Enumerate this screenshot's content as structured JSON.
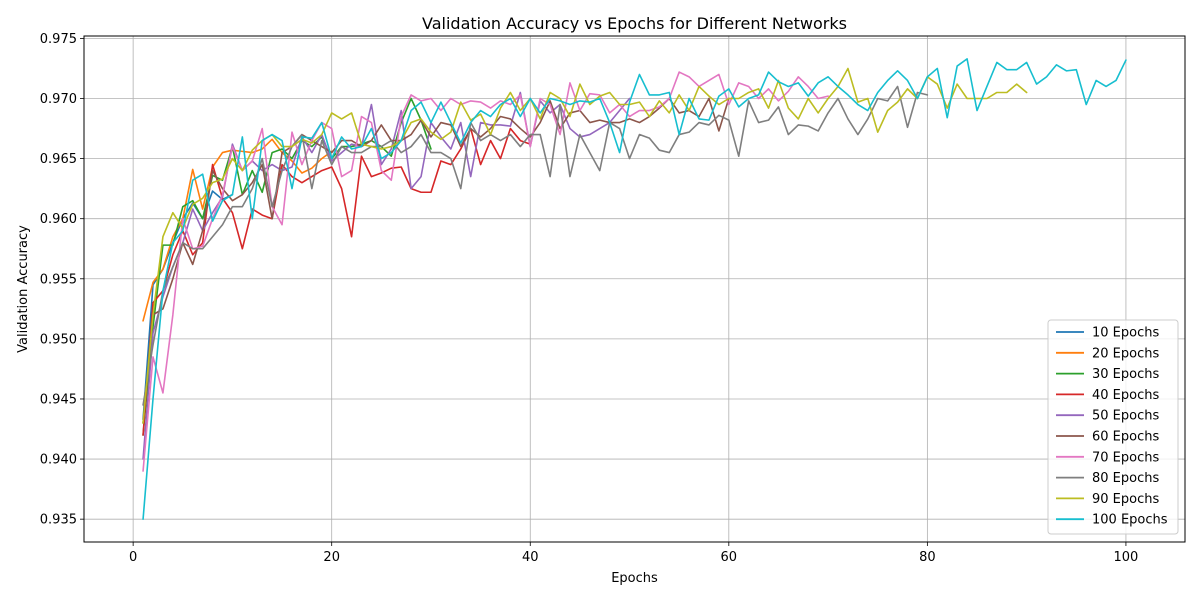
{
  "chart_data": {
    "type": "line",
    "title": "Validation Accuracy vs Epochs for Different Networks",
    "xlabel": "Epochs",
    "ylabel": "Validation Accuracy",
    "xlim": [
      -4.95,
      105.95
    ],
    "ylim": [
      0.9331,
      0.9752
    ],
    "xticks": [
      0,
      20,
      40,
      60,
      80,
      100
    ],
    "yticks": [
      0.935,
      0.94,
      0.945,
      0.95,
      0.955,
      0.96,
      0.965,
      0.97,
      0.975
    ],
    "ytick_labels": [
      "0.935",
      "0.940",
      "0.945",
      "0.950",
      "0.955",
      "0.960",
      "0.965",
      "0.970",
      "0.975"
    ],
    "grid": true,
    "legend_position": "lower-right",
    "series": [
      {
        "name": "10 Epochs",
        "color": "#1f77b4",
        "values": [
          0.9433,
          0.9545,
          0.9558,
          0.958,
          0.96,
          0.9613,
          0.96,
          0.9623,
          0.9616,
          0.962
        ]
      },
      {
        "name": "20 Epochs",
        "color": "#ff7f0e",
        "values": [
          0.9515,
          0.9547,
          0.9558,
          0.9585,
          0.96,
          0.9641,
          0.9608,
          0.9643,
          0.9655,
          0.9657,
          0.9656,
          0.9655,
          0.9658,
          0.9666,
          0.9655,
          0.9648,
          0.9638,
          0.9642,
          0.965,
          0.9656
        ]
      },
      {
        "name": "30 Epochs",
        "color": "#2ca02c",
        "values": [
          0.942,
          0.951,
          0.9578,
          0.9578,
          0.961,
          0.9615,
          0.96,
          0.9636,
          0.9632,
          0.966,
          0.962,
          0.964,
          0.9622,
          0.9655,
          0.9658,
          0.965,
          0.9665,
          0.966,
          0.9668,
          0.965,
          0.966,
          0.966,
          0.9662,
          0.9665,
          0.966,
          0.9652,
          0.968,
          0.97,
          0.9682,
          0.9658
        ]
      },
      {
        "name": "40 Epochs",
        "color": "#d62728",
        "values": [
          0.942,
          0.953,
          0.954,
          0.957,
          0.959,
          0.957,
          0.958,
          0.9645,
          0.9617,
          0.9605,
          0.9575,
          0.9608,
          0.9603,
          0.96,
          0.9645,
          0.9635,
          0.963,
          0.9635,
          0.964,
          0.9643,
          0.9625,
          0.9585,
          0.9652,
          0.9635,
          0.9638,
          0.9642,
          0.9643,
          0.9625,
          0.9622,
          0.9622,
          0.9648,
          0.9645,
          0.9658,
          0.9675,
          0.9645,
          0.9665,
          0.965,
          0.9675,
          0.9665,
          0.9662
        ]
      },
      {
        "name": "50 Epochs",
        "color": "#9467bd",
        "values": [
          0.94,
          0.9505,
          0.9535,
          0.956,
          0.958,
          0.9608,
          0.959,
          0.9605,
          0.9618,
          0.9662,
          0.964,
          0.9648,
          0.964,
          0.9645,
          0.964,
          0.9643,
          0.9668,
          0.9655,
          0.967,
          0.9648,
          0.9655,
          0.9662,
          0.966,
          0.9695,
          0.9645,
          0.9658,
          0.969,
          0.9625,
          0.9635,
          0.968,
          0.9668,
          0.9658,
          0.968,
          0.9635,
          0.968,
          0.9678,
          0.9678,
          0.9677,
          0.9705,
          0.966,
          0.9698,
          0.9688,
          0.9695,
          0.9675,
          0.9668,
          0.967,
          0.9675,
          0.968,
          0.969,
          0.97
        ]
      },
      {
        "name": "60 Epochs",
        "color": "#8c564b",
        "values": [
          0.943,
          0.952,
          0.9525,
          0.955,
          0.958,
          0.9562,
          0.959,
          0.964,
          0.9625,
          0.9615,
          0.962,
          0.963,
          0.9645,
          0.96,
          0.9655,
          0.966,
          0.967,
          0.9665,
          0.966,
          0.9655,
          0.9665,
          0.9665,
          0.966,
          0.9665,
          0.9678,
          0.9665,
          0.9665,
          0.967,
          0.9682,
          0.9668,
          0.968,
          0.9678,
          0.966,
          0.9675,
          0.9668,
          0.9675,
          0.9685,
          0.9683,
          0.9675,
          0.9668,
          0.968,
          0.9698,
          0.9675,
          0.9688,
          0.969,
          0.968,
          0.9682,
          0.968,
          0.968,
          0.9683,
          0.968,
          0.9685,
          0.9692,
          0.97,
          0.9688,
          0.969,
          0.9685,
          0.97,
          0.9673,
          0.97
        ]
      },
      {
        "name": "70 Epochs",
        "color": "#e377c2",
        "values": [
          0.939,
          0.9485,
          0.9455,
          0.952,
          0.96,
          0.9575,
          0.9577,
          0.96,
          0.962,
          0.966,
          0.964,
          0.9648,
          0.9675,
          0.961,
          0.9595,
          0.9672,
          0.9645,
          0.9665,
          0.968,
          0.9675,
          0.9635,
          0.964,
          0.9685,
          0.968,
          0.964,
          0.9632,
          0.9685,
          0.9703,
          0.9698,
          0.97,
          0.969,
          0.97,
          0.9695,
          0.9698,
          0.9697,
          0.9692,
          0.9698,
          0.9695,
          0.9703,
          0.966,
          0.97,
          0.9695,
          0.967,
          0.9713,
          0.969,
          0.9704,
          0.9703,
          0.9688,
          0.9695,
          0.9685,
          0.969,
          0.969,
          0.9693,
          0.97,
          0.9722,
          0.9718,
          0.971,
          0.9715,
          0.972,
          0.9695,
          0.9713,
          0.971,
          0.97,
          0.9708,
          0.9698,
          0.9706,
          0.9718,
          0.971,
          0.97,
          0.9702
        ]
      },
      {
        "name": "80 Epochs",
        "color": "#7f7f7f",
        "values": [
          0.9445,
          0.9495,
          0.954,
          0.956,
          0.958,
          0.9575,
          0.9575,
          0.9585,
          0.9595,
          0.961,
          0.961,
          0.9625,
          0.965,
          0.961,
          0.964,
          0.966,
          0.967,
          0.9625,
          0.9665,
          0.9645,
          0.966,
          0.9655,
          0.9655,
          0.966,
          0.966,
          0.9665,
          0.9655,
          0.966,
          0.967,
          0.9655,
          0.9655,
          0.965,
          0.9625,
          0.968,
          0.9665,
          0.967,
          0.9665,
          0.967,
          0.966,
          0.967,
          0.967,
          0.9635,
          0.9695,
          0.9635,
          0.967,
          0.9655,
          0.964,
          0.968,
          0.9675,
          0.965,
          0.967,
          0.9667,
          0.9657,
          0.9655,
          0.967,
          0.9672,
          0.968,
          0.9678,
          0.9686,
          0.9682,
          0.9652,
          0.9698,
          0.968,
          0.9682,
          0.9693,
          0.967,
          0.9678,
          0.9677,
          0.9673,
          0.9688,
          0.97,
          0.9683,
          0.967,
          0.9683,
          0.97,
          0.9698,
          0.971,
          0.9676,
          0.9705,
          0.9703
        ]
      },
      {
        "name": "90 Epochs",
        "color": "#bcbd22",
        "values": [
          0.943,
          0.952,
          0.9585,
          0.9605,
          0.9592,
          0.9612,
          0.9617,
          0.963,
          0.9633,
          0.965,
          0.964,
          0.9657,
          0.9665,
          0.967,
          0.966,
          0.966,
          0.9666,
          0.9663,
          0.967,
          0.9688,
          0.9683,
          0.9688,
          0.9662,
          0.966,
          0.9658,
          0.966,
          0.9665,
          0.968,
          0.9683,
          0.9672,
          0.9666,
          0.9672,
          0.9697,
          0.9682,
          0.9687,
          0.967,
          0.9692,
          0.9705,
          0.969,
          0.97,
          0.9683,
          0.9705,
          0.97,
          0.9685,
          0.9712,
          0.9695,
          0.9702,
          0.9705,
          0.9695,
          0.9695,
          0.9697,
          0.9685,
          0.9698,
          0.9688,
          0.9703,
          0.969,
          0.971,
          0.9702,
          0.9695,
          0.97,
          0.97,
          0.9705,
          0.9708,
          0.9692,
          0.9715,
          0.9692,
          0.9683,
          0.97,
          0.9688,
          0.97,
          0.971,
          0.9725,
          0.9697,
          0.97,
          0.9672,
          0.969,
          0.9697,
          0.9708,
          0.97,
          0.9718,
          0.9712,
          0.9692,
          0.9712,
          0.97,
          0.97,
          0.97,
          0.9705,
          0.9705,
          0.9712,
          0.9705
        ]
      },
      {
        "name": "100 Epochs",
        "color": "#17becf",
        "values": [
          0.935,
          0.945,
          0.954,
          0.958,
          0.959,
          0.9632,
          0.9637,
          0.9598,
          0.9615,
          0.962,
          0.9668,
          0.96,
          0.9665,
          0.967,
          0.9665,
          0.9625,
          0.9668,
          0.9667,
          0.968,
          0.965,
          0.9668,
          0.9658,
          0.966,
          0.9675,
          0.965,
          0.9655,
          0.9665,
          0.969,
          0.9697,
          0.968,
          0.9697,
          0.968,
          0.9663,
          0.968,
          0.969,
          0.9685,
          0.9695,
          0.97,
          0.9685,
          0.97,
          0.9688,
          0.97,
          0.9698,
          0.9695,
          0.9698,
          0.9697,
          0.97,
          0.968,
          0.9655,
          0.9697,
          0.972,
          0.9703,
          0.9703,
          0.9705,
          0.967,
          0.97,
          0.9683,
          0.9682,
          0.9702,
          0.9708,
          0.9693,
          0.97,
          0.9703,
          0.9722,
          0.9714,
          0.971,
          0.9713,
          0.9702,
          0.9713,
          0.9718,
          0.971,
          0.9703,
          0.9695,
          0.969,
          0.9705,
          0.9715,
          0.9723,
          0.9715,
          0.97,
          0.9718,
          0.9725,
          0.9684,
          0.9727,
          0.9733,
          0.969,
          0.971,
          0.973,
          0.9724,
          0.9724,
          0.973,
          0.9712,
          0.9718,
          0.9728,
          0.9723,
          0.9724,
          0.9695,
          0.9715,
          0.971,
          0.9715,
          0.9732
        ]
      }
    ]
  }
}
